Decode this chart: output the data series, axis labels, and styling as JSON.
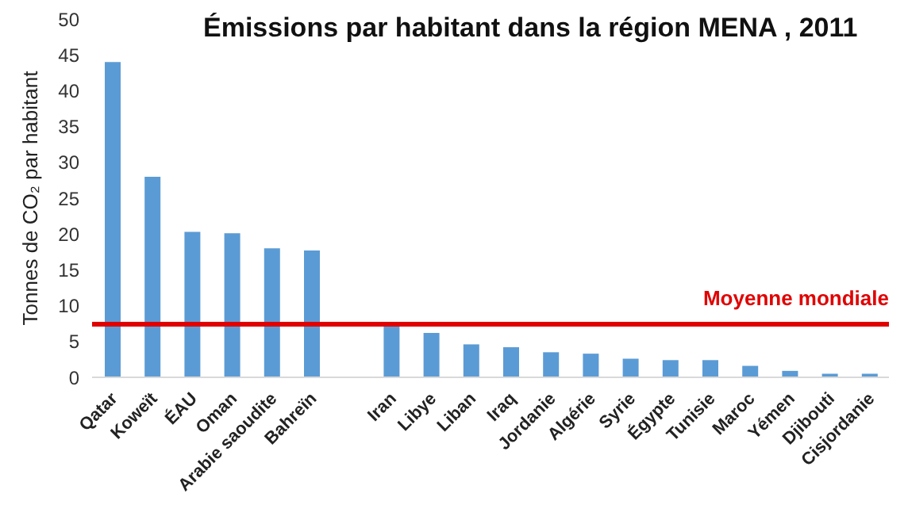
{
  "chart_data": {
    "type": "bar",
    "title": "Émissions par habitant dans la région MENA , 2011",
    "ylabel": "Tonnes de CO₂ par habitant",
    "categories": [
      "Qatar",
      "Koweït",
      "ÉAU",
      "Oman",
      "Arabie saoudite",
      "Bahreïn",
      null,
      "Iran",
      "Libye",
      "Liban",
      "Iraq",
      "Jordanie",
      "Algérie",
      "Syrie",
      "Égypte",
      "Tunisie",
      "Maroc",
      "Yémen",
      "Djibouti",
      "Cisjordanie"
    ],
    "values": [
      44,
      28,
      20.3,
      20.1,
      18,
      17.7,
      null,
      7.7,
      6.2,
      4.6,
      4.2,
      3.5,
      3.3,
      2.6,
      2.4,
      2.4,
      1.6,
      0.9,
      0.5,
      0.5
    ],
    "color": "#5b9bd5",
    "ylim": [
      0,
      50
    ],
    "yticks": [
      0,
      5,
      10,
      15,
      20,
      25,
      30,
      35,
      40,
      45,
      50
    ],
    "grid": false,
    "ref_lines": [
      {
        "axis": "y",
        "value": 7.4,
        "label": "Moyenne mondiale",
        "color": "#e00000"
      }
    ]
  }
}
